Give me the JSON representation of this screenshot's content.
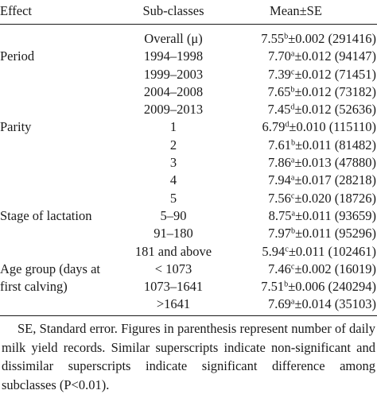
{
  "header": {
    "effect": "Effect",
    "subclasses": "Sub-classes",
    "mean_se": "Mean±SE"
  },
  "rows": [
    {
      "effect": "",
      "sub": "Overall (μ)",
      "mean": "7.55",
      "sup": "b",
      "rest": "±0.002 (291416)"
    },
    {
      "effect": "Period",
      "sub": "1994–1998",
      "mean": "7.70",
      "sup": "a",
      "rest": "±0.012 (94147)"
    },
    {
      "effect": "",
      "sub": "1999–2003",
      "mean": "7.39",
      "sup": "c",
      "rest": "±0.012 (71451)"
    },
    {
      "effect": "",
      "sub": "2004–2008",
      "mean": "7.65",
      "sup": "b",
      "rest": "±0.012 (73182)"
    },
    {
      "effect": "",
      "sub": "2009–2013",
      "mean": "7.45",
      "sup": "d",
      "rest": "±0.012 (52636)"
    },
    {
      "effect": "Parity",
      "sub": "1",
      "mean": "6.79",
      "sup": "d",
      "rest": "±0.010 (115110)"
    },
    {
      "effect": "",
      "sub": "2",
      "mean": "7.61",
      "sup": "b",
      "rest": "±0.011 (81482)"
    },
    {
      "effect": "",
      "sub": "3",
      "mean": "7.86",
      "sup": "a",
      "rest": "±0.013 (47880)"
    },
    {
      "effect": "",
      "sub": "4",
      "mean": "7.94",
      "sup": "a",
      "rest": "±0.017 (28218)"
    },
    {
      "effect": "",
      "sub": "5",
      "mean": "7.56",
      "sup": "c",
      "rest": "±0.020 (18726)"
    },
    {
      "effect": "Stage of lactation",
      "sub": "5–90",
      "mean": "8.75",
      "sup": "a",
      "rest": "±0.011 (93659)"
    },
    {
      "effect": "",
      "sub": "91–180",
      "mean": "7.97",
      "sup": "b",
      "rest": "±0.011 (95296)"
    },
    {
      "effect": "",
      "sub": "181 and above",
      "mean": "5.94",
      "sup": "c",
      "rest": "±0.011 (102461)"
    },
    {
      "effect": "Age group (days at",
      "sub": "< 1073",
      "mean": "7.46",
      "sup": "c",
      "rest": "±0.002 (16019)"
    },
    {
      "effect": "first calving)",
      "sub": "1073–1641",
      "mean": "7.51",
      "sup": "b",
      "rest": "±0.006 (240294)"
    },
    {
      "effect": "",
      "sub": ">1641",
      "mean": "7.69",
      "sup": "a",
      "rest": "±0.014 (35103)"
    }
  ],
  "footnote": "SE, Standard error. Figures in parenthesis represent number of daily milk yield records. Similar superscripts indicate non-significant and dissimilar superscripts indicate significant difference among subclasses (P<0.01)."
}
